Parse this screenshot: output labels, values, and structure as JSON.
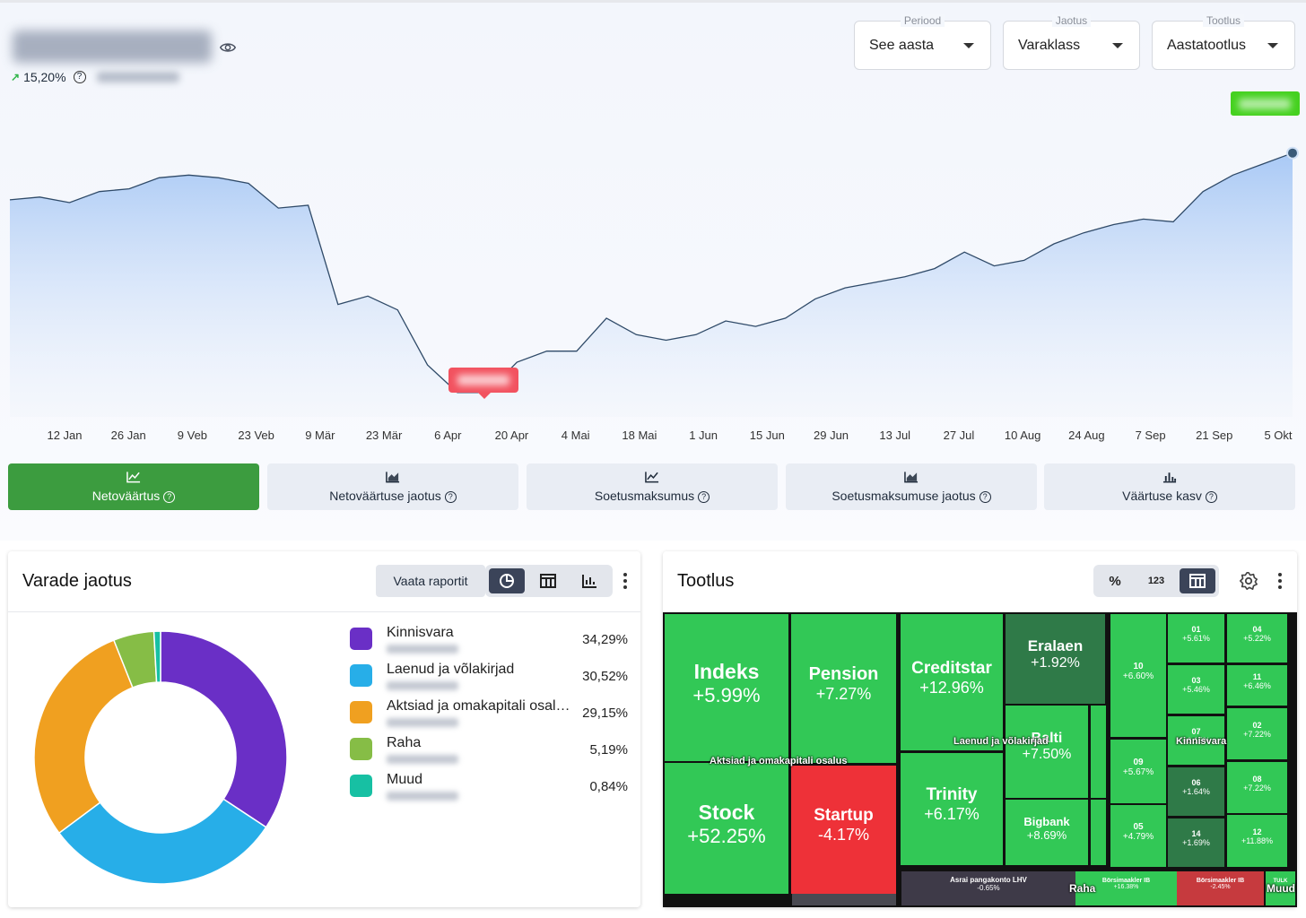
{
  "header": {
    "growth_pct": "15,20%",
    "filters": [
      {
        "label": "Periood",
        "value": "See aasta"
      },
      {
        "label": "Jaotus",
        "value": "Varaklass"
      },
      {
        "label": "Tootlus",
        "value": "Aastatootlus"
      }
    ]
  },
  "chart_data": {
    "type": "area",
    "x_ticks": [
      "12 Jan",
      "26 Jan",
      "9 Veb",
      "23 Veb",
      "9 Mär",
      "23 Mär",
      "6 Apr",
      "20 Apr",
      "4 Mai",
      "18 Mai",
      "1 Jun",
      "15 Jun",
      "29 Jun",
      "13 Jul",
      "27 Jul",
      "10 Aug",
      "24 Aug",
      "7 Sep",
      "21 Sep",
      "5 Okt"
    ],
    "values": [
      0.73,
      0.74,
      0.72,
      0.76,
      0.77,
      0.81,
      0.82,
      0.81,
      0.79,
      0.7,
      0.71,
      0.35,
      0.38,
      0.33,
      0.13,
      0.03,
      0.03,
      0.14,
      0.18,
      0.18,
      0.3,
      0.24,
      0.22,
      0.24,
      0.29,
      0.27,
      0.3,
      0.37,
      0.41,
      0.43,
      0.45,
      0.48,
      0.54,
      0.49,
      0.51,
      0.57,
      0.61,
      0.64,
      0.66,
      0.65,
      0.76,
      0.82,
      0.86,
      0.9
    ],
    "y_range": [
      0,
      1
    ],
    "grid": false
  },
  "tabs": [
    {
      "label": "Netoväärtus",
      "icon": "line-chart-icon",
      "active": true
    },
    {
      "label": "Netoväärtuse jaotus",
      "icon": "area-chart-icon",
      "active": false
    },
    {
      "label": "Soetusmaksumus",
      "icon": "line-chart-icon",
      "active": false
    },
    {
      "label": "Soetusmaksumuse jaotus",
      "icon": "area-chart-icon",
      "active": false
    },
    {
      "label": "Väärtuse kasv",
      "icon": "bar-chart-icon",
      "active": false
    }
  ],
  "allocation": {
    "title": "Varade jaotus",
    "report_button": "Vaata raportit",
    "items": [
      {
        "name": "Kinnisvara",
        "pct": "34,29%",
        "value": 34.29,
        "color": "#6a2fc6"
      },
      {
        "name": "Laenud ja võlakirjad",
        "pct": "30,52%",
        "value": 30.52,
        "color": "#27aee8"
      },
      {
        "name": "Aktsiad ja omakapitali osal…",
        "pct": "29,15%",
        "value": 29.15,
        "color": "#f0a020"
      },
      {
        "name": "Raha",
        "pct": "5,19%",
        "value": 5.19,
        "color": "#86bd46"
      },
      {
        "name": "Muud",
        "pct": "0,84%",
        "value": 0.84,
        "color": "#17c0a3"
      }
    ]
  },
  "returns": {
    "title": "Tootlus",
    "seg_labels": [
      "%",
      "123",
      ""
    ],
    "overlays": [
      "Aktsiad ja omakapitali osalus",
      "Laenud ja võlakirjad",
      "Kinnisvara",
      "Raha",
      "Muud"
    ],
    "cells": {
      "indeks": {
        "name": "Indeks",
        "val": "+5.99%"
      },
      "pension": {
        "name": "Pension",
        "val": "+7.27%"
      },
      "stock": {
        "name": "Stock",
        "val": "+52.25%"
      },
      "startup": {
        "name": "Startup",
        "val": "-4.17%"
      },
      "creditstar": {
        "name": "Creditstar",
        "val": "+12.96%"
      },
      "eralaen": {
        "name": "Eralaen",
        "val": "+1.92%"
      },
      "balti": {
        "name": "Balti",
        "val": "+7.50%"
      },
      "trinity": {
        "name": "Trinity",
        "val": "+6.17%"
      },
      "bigbank": {
        "name": "Bigbank",
        "val": "+8.69%"
      },
      "k10": {
        "name": "10",
        "val": "+6.60%"
      },
      "k09": {
        "name": "09",
        "val": "+5.67%"
      },
      "k05": {
        "name": "05",
        "val": "+4.79%"
      },
      "k01": {
        "name": "01",
        "val": "+5.61%"
      },
      "k04": {
        "name": "04",
        "val": "+5.22%"
      },
      "k03": {
        "name": "03",
        "val": "+5.46%"
      },
      "k11": {
        "name": "11",
        "val": "+6.46%"
      },
      "k07": {
        "name": "07",
        "val": "+6.15%"
      },
      "k02": {
        "name": "02",
        "val": "+7.22%"
      },
      "k06": {
        "name": "06",
        "val": "+1.64%"
      },
      "k08": {
        "name": "08",
        "val": "+7.22%"
      },
      "k14": {
        "name": "14",
        "val": "+1.69%"
      },
      "k12": {
        "name": "12",
        "val": "+11.88%"
      },
      "lhv": {
        "name": "Asrai pangakonto LHV",
        "val": "-0.65%"
      },
      "ib1": {
        "name": "Börsimaakler IB",
        "val": "+16.38%"
      },
      "ib2": {
        "name": "Börsimaakler IB",
        "val": "-2.45%"
      },
      "tulk": {
        "name": "TULK",
        "val": ""
      }
    }
  }
}
